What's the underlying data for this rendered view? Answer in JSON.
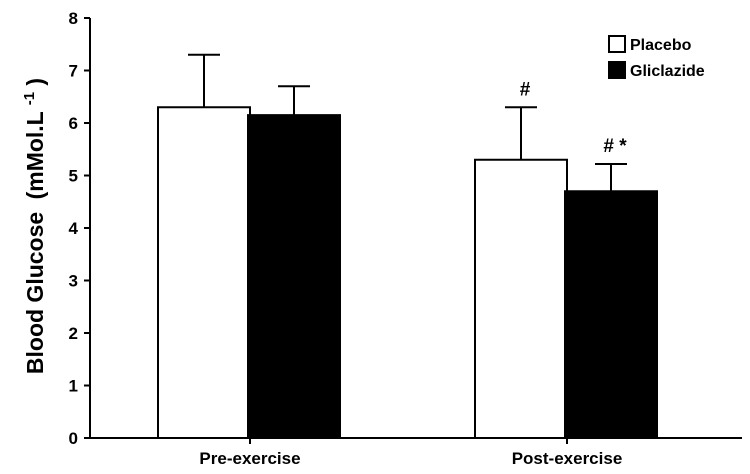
{
  "chart_data": {
    "type": "bar",
    "categories": [
      "Pre-exercise",
      "Post-exercise"
    ],
    "series": [
      {
        "name": "Placebo",
        "values": [
          6.3,
          5.3
        ],
        "error": [
          1.0,
          1.0
        ],
        "fill": "#ffffff"
      },
      {
        "name": "Gliclazide",
        "values": [
          6.15,
          4.7
        ],
        "error": [
          0.55,
          0.52
        ],
        "fill": "#000000"
      }
    ],
    "title": "",
    "xlabel": "",
    "ylabel": "Blood Glucose",
    "ylabel_unit_base": "(mMol.L",
    "ylabel_unit_sup": "-1",
    "ylabel_unit_end": ")",
    "ylim": [
      0,
      8
    ],
    "yticks": [
      "0",
      "1",
      "2",
      "3",
      "4",
      "5",
      "6",
      "7",
      "8"
    ],
    "legend_position": "top-right",
    "annotations": [
      {
        "category": 1,
        "series": 0,
        "text": "#"
      },
      {
        "category": 1,
        "series": 1,
        "text": "# *"
      }
    ],
    "grid": false
  }
}
